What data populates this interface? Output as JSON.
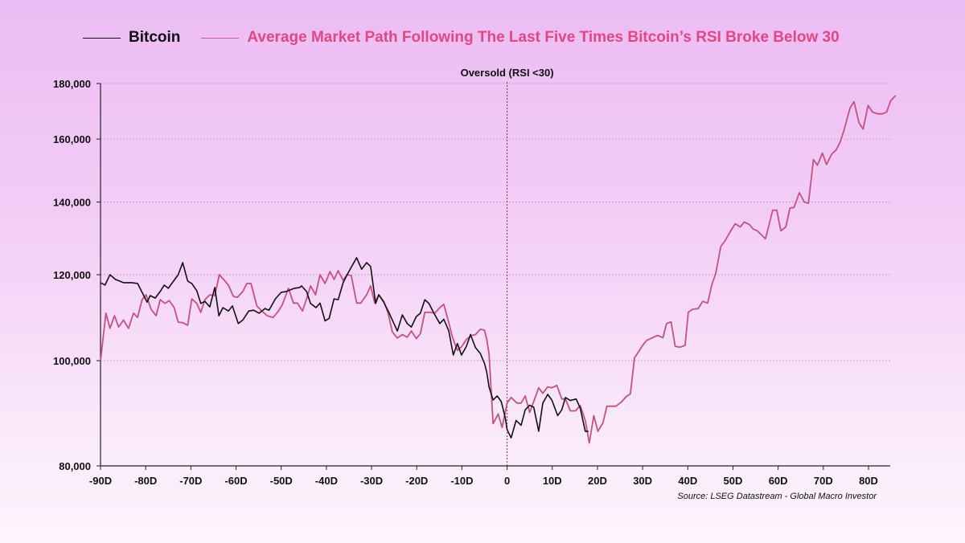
{
  "chart_data": {
    "type": "line",
    "title": "",
    "annotation": "Oversold (RSI <30)",
    "annotation_x": 0,
    "source": "Source: LSEG Datastream - Global Macro Investor",
    "xlabel": "",
    "ylabel": "",
    "xlim": [
      -90,
      87
    ],
    "ylim": [
      80000,
      180000
    ],
    "yscale": "log",
    "grid": "horizontal dotted",
    "legend_placement": "top",
    "x_ticks": [
      -90,
      -80,
      -70,
      -60,
      -50,
      -40,
      -30,
      -20,
      -10,
      0,
      10,
      20,
      30,
      40,
      50,
      60,
      70,
      80
    ],
    "x_tick_labels": [
      "-90D",
      "-80D",
      "-70D",
      "-60D",
      "-50D",
      "-40D",
      "-30D",
      "-20D",
      "-10D",
      "0",
      "10D",
      "20D",
      "30D",
      "40D",
      "50D",
      "60D",
      "70D",
      "80D"
    ],
    "y_ticks": [
      80000,
      100000,
      120000,
      140000,
      160000,
      180000
    ],
    "y_tick_labels": [
      "80,000",
      "100,000",
      "120,000",
      "140,000",
      "160,000",
      "180,000"
    ],
    "colors": {
      "bitcoin": "#111111",
      "average": "#c4527f",
      "average_text": "#e0487f"
    },
    "series": [
      {
        "name": "Bitcoin",
        "points": [
          [
            -90,
            118000
          ],
          [
            -89,
            117400
          ],
          [
            -87.9,
            120000
          ],
          [
            -86.7,
            118800
          ],
          [
            -84.9,
            118000
          ],
          [
            -83.1,
            118000
          ],
          [
            -81.8,
            117800
          ],
          [
            -79.7,
            113200
          ],
          [
            -79,
            114800
          ],
          [
            -77.9,
            114200
          ],
          [
            -76.8,
            115800
          ],
          [
            -75.9,
            117400
          ],
          [
            -75,
            116600
          ],
          [
            -72.8,
            120000
          ],
          [
            -71.8,
            123100
          ],
          [
            -70.7,
            118400
          ],
          [
            -69.8,
            117800
          ],
          [
            -68.7,
            116000
          ],
          [
            -67.8,
            112900
          ],
          [
            -66.9,
            113400
          ],
          [
            -65.8,
            112100
          ],
          [
            -64.7,
            116800
          ],
          [
            -63.8,
            110000
          ],
          [
            -62.9,
            111900
          ],
          [
            -61.7,
            111100
          ],
          [
            -60.8,
            112300
          ],
          [
            -59.5,
            108200
          ],
          [
            -58.5,
            109000
          ],
          [
            -57.2,
            111100
          ],
          [
            -56.1,
            111300
          ],
          [
            -54.9,
            110600
          ],
          [
            -53.6,
            111700
          ],
          [
            -52.7,
            111300
          ],
          [
            -51.3,
            114000
          ],
          [
            -50,
            115600
          ],
          [
            -48.9,
            115800
          ],
          [
            -47.1,
            116600
          ],
          [
            -45.9,
            116800
          ],
          [
            -45.5,
            117200
          ],
          [
            -44.4,
            115800
          ],
          [
            -43.5,
            112900
          ],
          [
            -42.3,
            111900
          ],
          [
            -41.4,
            113000
          ],
          [
            -40.3,
            108800
          ],
          [
            -39.4,
            109400
          ],
          [
            -38.3,
            114000
          ],
          [
            -37.4,
            113800
          ],
          [
            -36.3,
            118000
          ],
          [
            -35.4,
            120000
          ],
          [
            -34.4,
            122100
          ],
          [
            -33.3,
            124400
          ],
          [
            -32.2,
            121400
          ],
          [
            -31.1,
            123100
          ],
          [
            -30.2,
            122100
          ],
          [
            -29.1,
            112900
          ],
          [
            -28.4,
            115000
          ],
          [
            -27.3,
            113200
          ],
          [
            -26.1,
            110600
          ],
          [
            -24.3,
            106500
          ],
          [
            -23.2,
            110200
          ],
          [
            -22.1,
            108200
          ],
          [
            -21.2,
            107400
          ],
          [
            -20.1,
            109800
          ],
          [
            -19.2,
            110600
          ],
          [
            -18.2,
            113800
          ],
          [
            -17.3,
            112900
          ],
          [
            -16.2,
            110600
          ],
          [
            -14.9,
            108200
          ],
          [
            -14,
            109200
          ],
          [
            -12.9,
            106500
          ],
          [
            -11.9,
            101200
          ],
          [
            -11,
            103700
          ],
          [
            -10.1,
            101200
          ],
          [
            -9,
            103100
          ],
          [
            -8.1,
            105700
          ],
          [
            -7,
            102800
          ],
          [
            -5.9,
            101500
          ],
          [
            -5,
            99400
          ],
          [
            -4.5,
            97600
          ],
          [
            -4,
            94600
          ],
          [
            -3.1,
            92000
          ],
          [
            -2.2,
            92800
          ],
          [
            -1.3,
            91700
          ],
          [
            -0.4,
            88600
          ],
          [
            0,
            86400
          ],
          [
            0.9,
            84900
          ],
          [
            2,
            88100
          ],
          [
            3.1,
            87200
          ],
          [
            4,
            90100
          ],
          [
            5,
            91000
          ],
          [
            5.9,
            90600
          ],
          [
            7,
            86100
          ],
          [
            7.9,
            91400
          ],
          [
            9,
            93100
          ],
          [
            9.9,
            92000
          ],
          [
            11.2,
            89000
          ],
          [
            12.1,
            90100
          ],
          [
            12.9,
            92500
          ],
          [
            14,
            91900
          ],
          [
            15.3,
            92200
          ],
          [
            16.2,
            90400
          ],
          [
            17.3,
            86100
          ],
          [
            18,
            86100
          ]
        ]
      },
      {
        "name": "Average Market Path Following The Last Five Times Bitcoin’s RSI Broke Below 30",
        "points": [
          [
            -90,
            100000
          ],
          [
            -88.8,
            110600
          ],
          [
            -87.9,
            107100
          ],
          [
            -86.9,
            110000
          ],
          [
            -86,
            107400
          ],
          [
            -84.9,
            109000
          ],
          [
            -83.8,
            107100
          ],
          [
            -82.7,
            110600
          ],
          [
            -81.8,
            109600
          ],
          [
            -80.8,
            113800
          ],
          [
            -79.9,
            115000
          ],
          [
            -78.8,
            111500
          ],
          [
            -77.7,
            110000
          ],
          [
            -76.8,
            113800
          ],
          [
            -75.7,
            112900
          ],
          [
            -74.8,
            113600
          ],
          [
            -73.7,
            111900
          ],
          [
            -72.8,
            108500
          ],
          [
            -71.8,
            108400
          ],
          [
            -70.7,
            107800
          ],
          [
            -69.8,
            114000
          ],
          [
            -68.7,
            112900
          ],
          [
            -67.8,
            110800
          ],
          [
            -66.9,
            113800
          ],
          [
            -65.8,
            115000
          ],
          [
            -64.7,
            114800
          ],
          [
            -63.7,
            120000
          ],
          [
            -62.6,
            118600
          ],
          [
            -61.7,
            117400
          ],
          [
            -60.6,
            114600
          ],
          [
            -59.7,
            114400
          ],
          [
            -58.5,
            115800
          ],
          [
            -57.6,
            117800
          ],
          [
            -56.7,
            117800
          ],
          [
            -55.4,
            112300
          ],
          [
            -54.3,
            111100
          ],
          [
            -53.1,
            110000
          ],
          [
            -51.8,
            109600
          ],
          [
            -50.7,
            111000
          ],
          [
            -49.8,
            112500
          ],
          [
            -48.4,
            116600
          ],
          [
            -47.3,
            113000
          ],
          [
            -46.4,
            113000
          ],
          [
            -45.3,
            111100
          ],
          [
            -44.4,
            114000
          ],
          [
            -43.5,
            117200
          ],
          [
            -42.4,
            115000
          ],
          [
            -41.4,
            120000
          ],
          [
            -40.3,
            117800
          ],
          [
            -39.2,
            120800
          ],
          [
            -38.3,
            118800
          ],
          [
            -37.4,
            121000
          ],
          [
            -36.3,
            118600
          ],
          [
            -35.4,
            120000
          ],
          [
            -34.5,
            119800
          ],
          [
            -33.3,
            113000
          ],
          [
            -32.4,
            113000
          ],
          [
            -31.1,
            115000
          ],
          [
            -30.2,
            117200
          ],
          [
            -29.3,
            113000
          ],
          [
            -28.4,
            115000
          ],
          [
            -27.3,
            113400
          ],
          [
            -26.4,
            110800
          ],
          [
            -25.4,
            106300
          ],
          [
            -24.3,
            104900
          ],
          [
            -23.2,
            105700
          ],
          [
            -22.1,
            105100
          ],
          [
            -21.2,
            106500
          ],
          [
            -20.1,
            104800
          ],
          [
            -19.2,
            105900
          ],
          [
            -18.2,
            110800
          ],
          [
            -17.1,
            110800
          ],
          [
            -16,
            110600
          ],
          [
            -14.9,
            111900
          ],
          [
            -14,
            112700
          ],
          [
            -12.9,
            108400
          ],
          [
            -12.1,
            105100
          ],
          [
            -11,
            102200
          ],
          [
            -10.1,
            103000
          ],
          [
            -9,
            104600
          ],
          [
            -7.9,
            105500
          ],
          [
            -7,
            105700
          ],
          [
            -5.9,
            106900
          ],
          [
            -5,
            106700
          ],
          [
            -4.5,
            104600
          ],
          [
            -4,
            101500
          ],
          [
            -3.1,
            87500
          ],
          [
            -2,
            89300
          ],
          [
            -1.1,
            86800
          ],
          [
            0,
            91400
          ],
          [
            0.9,
            92500
          ],
          [
            2.2,
            91400
          ],
          [
            3.1,
            91400
          ],
          [
            4,
            92800
          ],
          [
            5,
            89600
          ],
          [
            5.9,
            91700
          ],
          [
            7,
            94400
          ],
          [
            7.9,
            93300
          ],
          [
            9,
            94600
          ],
          [
            9.9,
            94400
          ],
          [
            11,
            94900
          ],
          [
            12.1,
            92200
          ],
          [
            12.9,
            92200
          ],
          [
            14,
            89900
          ],
          [
            15.1,
            89900
          ],
          [
            16.2,
            90900
          ],
          [
            17.3,
            88100
          ],
          [
            18.2,
            84000
          ],
          [
            19.2,
            89000
          ],
          [
            20.1,
            86100
          ],
          [
            21.2,
            87600
          ],
          [
            22.1,
            90800
          ],
          [
            24.1,
            90800
          ],
          [
            25.4,
            91700
          ],
          [
            26.4,
            92700
          ],
          [
            27.3,
            93200
          ],
          [
            28.2,
            100600
          ],
          [
            29.1,
            101900
          ],
          [
            30,
            103300
          ],
          [
            30.9,
            104400
          ],
          [
            32.2,
            105000
          ],
          [
            33.3,
            105500
          ],
          [
            34.5,
            105000
          ],
          [
            35.3,
            108200
          ],
          [
            36.3,
            108600
          ],
          [
            37.2,
            103100
          ],
          [
            38.3,
            102900
          ],
          [
            39.4,
            103300
          ],
          [
            40.1,
            110800
          ],
          [
            41,
            111500
          ],
          [
            42.3,
            111700
          ],
          [
            43.3,
            113400
          ],
          [
            44.4,
            113000
          ],
          [
            45.3,
            117400
          ],
          [
            46.2,
            120400
          ],
          [
            47.3,
            127400
          ],
          [
            48.2,
            128900
          ],
          [
            49.5,
            131700
          ],
          [
            50.5,
            133700
          ],
          [
            51.6,
            132800
          ],
          [
            52.5,
            134200
          ],
          [
            53.6,
            133500
          ],
          [
            54.5,
            132200
          ],
          [
            55.4,
            131700
          ],
          [
            57.2,
            129500
          ],
          [
            58.8,
            137600
          ],
          [
            59.7,
            137600
          ],
          [
            60.6,
            131700
          ],
          [
            61.7,
            132800
          ],
          [
            62.6,
            138200
          ],
          [
            63.5,
            138400
          ],
          [
            64.7,
            142800
          ],
          [
            65.8,
            140000
          ],
          [
            66.7,
            139600
          ],
          [
            67.8,
            153200
          ],
          [
            68.7,
            151400
          ],
          [
            69.8,
            155300
          ],
          [
            70.7,
            151600
          ],
          [
            71.9,
            155100
          ],
          [
            72.8,
            156300
          ],
          [
            73.7,
            158900
          ],
          [
            74.6,
            163200
          ],
          [
            75.9,
            170900
          ],
          [
            76.8,
            173200
          ],
          [
            77.9,
            165600
          ],
          [
            78.8,
            163400
          ],
          [
            79.9,
            171800
          ],
          [
            80.9,
            169400
          ],
          [
            82,
            168800
          ],
          [
            83.1,
            168800
          ],
          [
            84,
            169400
          ],
          [
            84.9,
            173500
          ],
          [
            86,
            175500
          ]
        ]
      }
    ]
  },
  "legend": {
    "bitcoin_label": "Bitcoin",
    "average_label": "Average Market Path Following The Last Five Times Bitcoin’s RSI Broke Below 30"
  }
}
